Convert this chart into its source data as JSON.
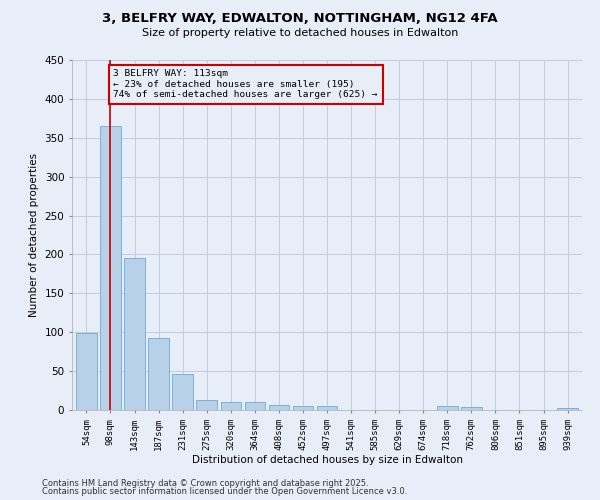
{
  "title1": "3, BELFRY WAY, EDWALTON, NOTTINGHAM, NG12 4FA",
  "title2": "Size of property relative to detached houses in Edwalton",
  "xlabel": "Distribution of detached houses by size in Edwalton",
  "ylabel": "Number of detached properties",
  "categories": [
    "54sqm",
    "98sqm",
    "143sqm",
    "187sqm",
    "231sqm",
    "275sqm",
    "320sqm",
    "364sqm",
    "408sqm",
    "452sqm",
    "497sqm",
    "541sqm",
    "585sqm",
    "629sqm",
    "674sqm",
    "718sqm",
    "762sqm",
    "806sqm",
    "851sqm",
    "895sqm",
    "939sqm"
  ],
  "values": [
    99,
    365,
    195,
    93,
    46,
    13,
    10,
    10,
    6,
    5,
    5,
    0,
    0,
    0,
    0,
    5,
    4,
    0,
    0,
    0,
    3
  ],
  "bar_color": "#b8d0e8",
  "bar_edge_color": "#6aaad4",
  "ylim": [
    0,
    450
  ],
  "yticks": [
    0,
    50,
    100,
    150,
    200,
    250,
    300,
    350,
    400,
    450
  ],
  "annotation_text": "3 BELFRY WAY: 113sqm\n← 23% of detached houses are smaller (195)\n74% of semi-detached houses are larger (625) →",
  "vline_x": 1,
  "vline_color": "#cc0000",
  "box_color": "#cc0000",
  "footnote1": "Contains HM Land Registry data © Crown copyright and database right 2025.",
  "footnote2": "Contains public sector information licensed under the Open Government Licence v3.0.",
  "bg_color": "#e8eef8",
  "grid_color": "#c0cce0"
}
